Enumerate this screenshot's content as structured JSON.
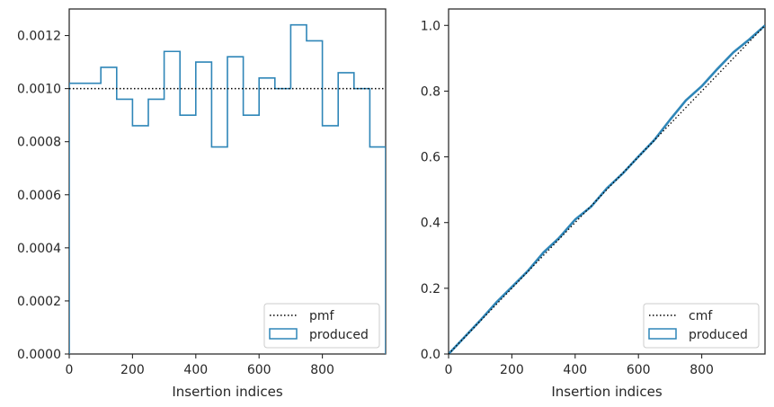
{
  "chart_data": [
    {
      "type": "step-histogram",
      "xlabel": "Insertion indices",
      "ylabel": "",
      "xlim": [
        0,
        1000
      ],
      "ylim": [
        0,
        0.0013
      ],
      "xticks": [
        0,
        200,
        400,
        600,
        800
      ],
      "xtick_labels": [
        "0",
        "200",
        "400",
        "600",
        "800"
      ],
      "yticks": [
        0,
        0.0002,
        0.0004,
        0.0006,
        0.0008,
        0.001,
        0.0012
      ],
      "ytick_labels": [
        "0.0000",
        "0.0002",
        "0.0004",
        "0.0006",
        "0.0008",
        "0.0010",
        "0.0012"
      ],
      "bin_edges": [
        0,
        50,
        100,
        150,
        200,
        250,
        300,
        350,
        400,
        450,
        500,
        550,
        600,
        650,
        700,
        750,
        800,
        850,
        900,
        950,
        1000
      ],
      "series": [
        {
          "name": "pmf",
          "style": "dotted",
          "color": "#000000",
          "values": [
            0.001
          ]
        },
        {
          "name": "produced",
          "style": "step",
          "color": "#2f86b8",
          "values": [
            0.00102,
            0.00102,
            0.00108,
            0.00096,
            0.00086,
            0.00096,
            0.00114,
            0.0009,
            0.0011,
            0.00078,
            0.00112,
            0.0009,
            0.00104,
            0.001,
            0.00124,
            0.00118,
            0.00086,
            0.00106,
            0.001,
            0.00078
          ]
        }
      ],
      "legend": {
        "placement": "lower-right",
        "entries": [
          "pmf",
          "produced"
        ]
      },
      "grid": false
    },
    {
      "type": "line",
      "xlabel": "Insertion indices",
      "ylabel": "",
      "xlim": [
        0,
        1000
      ],
      "ylim": [
        0,
        1.05
      ],
      "xticks": [
        0,
        200,
        400,
        600,
        800
      ],
      "xtick_labels": [
        "0",
        "200",
        "400",
        "600",
        "800"
      ],
      "yticks": [
        0,
        0.2,
        0.4,
        0.6,
        0.8,
        1.0
      ],
      "ytick_labels": [
        "0.0",
        "0.2",
        "0.4",
        "0.6",
        "0.8",
        "1.0"
      ],
      "series": [
        {
          "name": "cmf",
          "style": "dotted",
          "color": "#000000",
          "x": [
            0,
            1000
          ],
          "y": [
            0,
            1.0
          ]
        },
        {
          "name": "produced",
          "style": "solid",
          "color": "#2f86b8",
          "x": [
            0,
            50,
            100,
            150,
            200,
            250,
            300,
            350,
            400,
            450,
            500,
            550,
            600,
            650,
            700,
            750,
            800,
            850,
            900,
            950,
            1000
          ],
          "y": [
            0,
            0.051,
            0.102,
            0.156,
            0.204,
            0.252,
            0.309,
            0.354,
            0.409,
            0.448,
            0.504,
            0.549,
            0.601,
            0.651,
            0.713,
            0.772,
            0.815,
            0.868,
            0.918,
            0.957,
            1.0
          ]
        }
      ],
      "legend": {
        "placement": "lower-right",
        "entries": [
          "cmf",
          "produced"
        ]
      },
      "grid": false
    }
  ]
}
